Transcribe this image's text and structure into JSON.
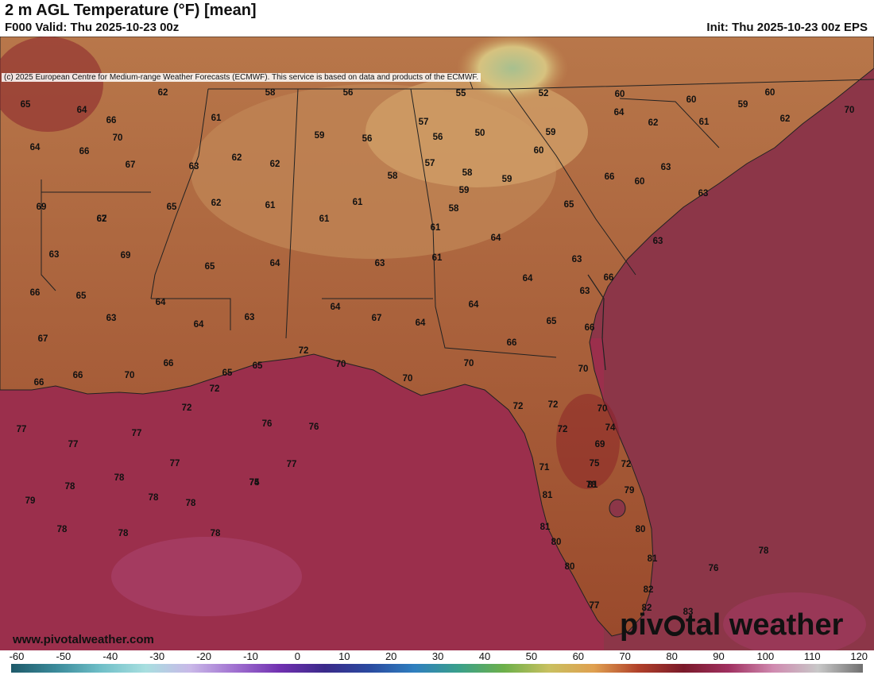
{
  "header": {
    "title": "2 m AGL Temperature (°F) [mean]",
    "valid": "F000 Valid: Thu 2025-10-23 00z",
    "init": "Init: Thu 2025-10-23 00z EPS"
  },
  "map": {
    "copyright": "(c) 2025 European Centre for Medium-range Weather Forecasts (ECMWF). This service is based on data and products of the ECMWF.",
    "colors": {
      "gulf_warm": "#9c2f4a",
      "ocean_far": "#8a3a4a",
      "land_warm": "#a0522d",
      "land_mid": "#b87a4c",
      "land_cool": "#c9a46a",
      "mountains_cool": "#9fb590",
      "border": "#222222"
    },
    "temperature_labels": [
      "65",
      "64",
      "66",
      "70",
      "64",
      "66",
      "67",
      "62",
      "58",
      "56",
      "55",
      "52",
      "60",
      "60",
      "60",
      "59",
      "62",
      "70",
      "61",
      "63",
      "62",
      "62",
      "59",
      "56",
      "57",
      "56",
      "50",
      "59",
      "64",
      "62",
      "61",
      "60",
      "57",
      "58",
      "59",
      "66",
      "63",
      "60",
      "69",
      "67",
      "65",
      "62",
      "61",
      "58",
      "61",
      "59",
      "65",
      "63",
      "62",
      "61",
      "61",
      "58",
      "63",
      "69",
      "65",
      "64",
      "63",
      "61",
      "64",
      "63",
      "63",
      "64",
      "63",
      "66",
      "66",
      "65",
      "63",
      "64",
      "64",
      "63",
      "64",
      "67",
      "64",
      "64",
      "65",
      "66",
      "66",
      "67",
      "66",
      "65",
      "65",
      "72",
      "70",
      "70",
      "70",
      "70",
      "66",
      "66",
      "70",
      "72",
      "72",
      "72",
      "72",
      "70",
      "77",
      "77",
      "76",
      "76",
      "72",
      "74",
      "77",
      "77",
      "77",
      "69",
      "71",
      "75",
      "72",
      "79",
      "78",
      "78",
      "78",
      "78",
      "74",
      "75",
      "78",
      "81",
      "81",
      "79",
      "78",
      "78",
      "78",
      "81",
      "80",
      "80",
      "81",
      "76",
      "78",
      "80",
      "82",
      "77",
      "82",
      "83"
    ]
  },
  "footer": {
    "site": "www.pivotalweather.com",
    "brand_left": "piv",
    "brand_right": "tal weather"
  },
  "scale": {
    "ticks": [
      "-60",
      "-50",
      "-40",
      "-30",
      "-20",
      "-10",
      "0",
      "10",
      "20",
      "30",
      "40",
      "50",
      "60",
      "70",
      "80",
      "90",
      "100",
      "110",
      "120"
    ],
    "colors": [
      "#1e5a6a",
      "#3a8a9a",
      "#6fbfc8",
      "#a8dfe0",
      "#c9b8e8",
      "#a070d0",
      "#7030b0",
      "#3a2a8a",
      "#2a4aa0",
      "#2f7fbf",
      "#3aa08a",
      "#6db04a",
      "#c9c060",
      "#e0a050",
      "#b0402a",
      "#7a1a2a",
      "#a03060",
      "#d08ab0",
      "#c8c8c8",
      "#707070"
    ]
  }
}
